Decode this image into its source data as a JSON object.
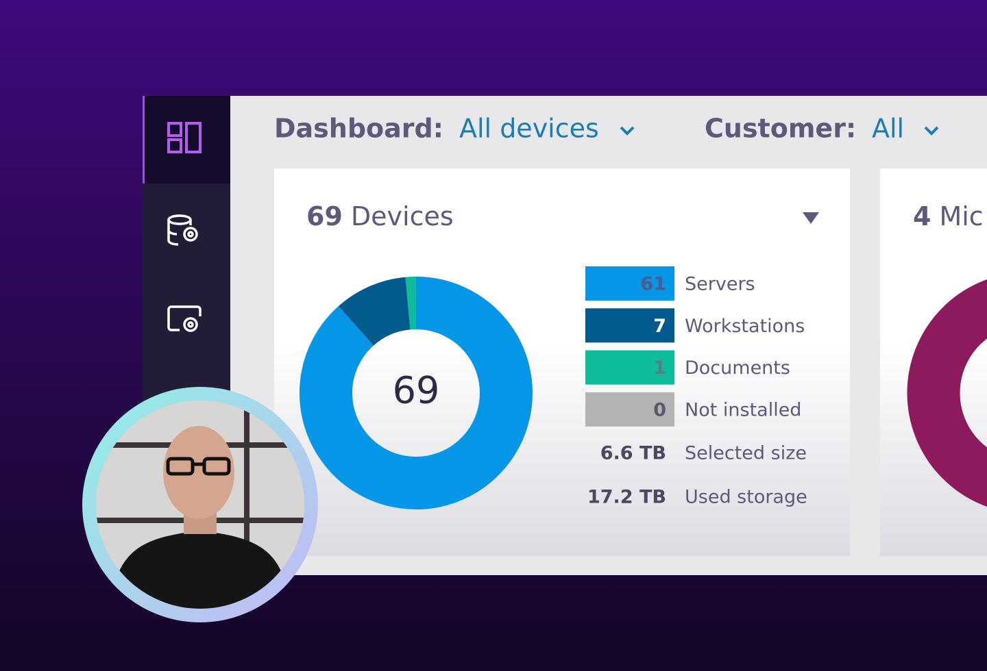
{
  "header": {
    "dashboard_label": "Dashboard:",
    "dashboard_value": "All devices",
    "customer_label": "Customer:",
    "customer_value": "All"
  },
  "card": {
    "count": "69",
    "title": "Devices",
    "center": "69",
    "legend": [
      {
        "value": 61,
        "label": "Servers",
        "color": "#0596e8"
      },
      {
        "value": 7,
        "label": "Workstations",
        "color": "#035a8c"
      },
      {
        "value": 1,
        "label": "Documents",
        "color": "#0ebc99"
      },
      {
        "value": 0,
        "label": "Not installed",
        "color": "#b4b4b4"
      }
    ],
    "stats": [
      {
        "value": "6.6 TB",
        "label": "Selected size"
      },
      {
        "value": "17.2 TB",
        "label": "Used storage"
      }
    ]
  },
  "card2": {
    "count": "4",
    "title": "Mic"
  }
}
